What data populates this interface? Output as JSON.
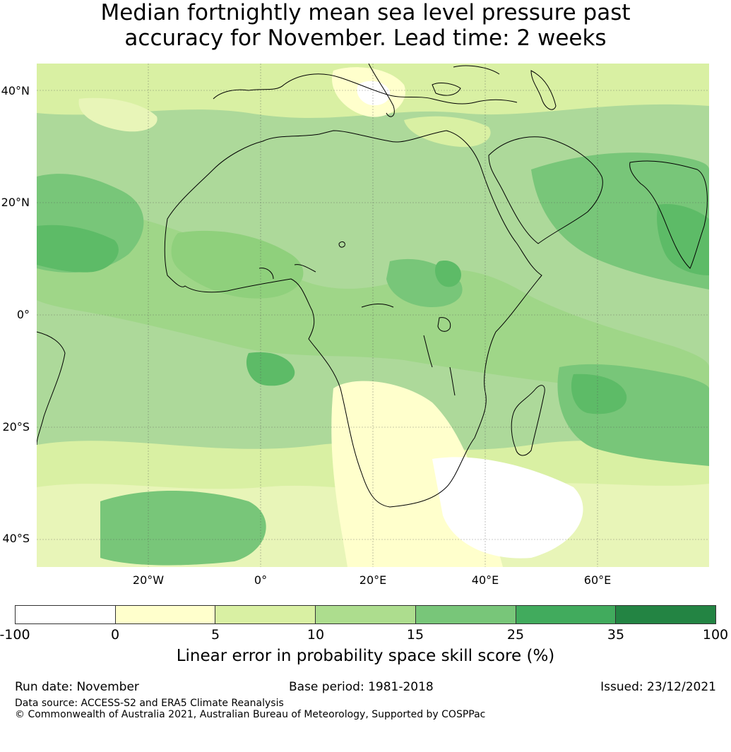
{
  "title_line1": "Median fortnightly mean sea level pressure past",
  "title_line2": "accuracy for November. Lead time: 2 weeks",
  "map": {
    "lat_labels": [
      {
        "text": "40°N",
        "lat": 40
      },
      {
        "text": "20°N",
        "lat": 20
      },
      {
        "text": "0°",
        "lat": 0
      },
      {
        "text": "20°S",
        "lat": -20
      },
      {
        "text": "40°S",
        "lat": -40
      }
    ],
    "lon_labels": [
      {
        "text": "20°W",
        "lon": -20
      },
      {
        "text": "0°",
        "lon": 0
      },
      {
        "text": "20°E",
        "lon": 20
      },
      {
        "text": "40°E",
        "lon": 40
      },
      {
        "text": "60°E",
        "lon": 60
      }
    ],
    "lat_range": [
      -45,
      45
    ],
    "lon_range": [
      -40,
      80
    ],
    "gridlines": true
  },
  "colorbar": {
    "ticks": [
      "-100",
      "0",
      "5",
      "10",
      "15",
      "25",
      "35",
      "100"
    ],
    "colors": [
      "#ffffff",
      "#ffffcc",
      "#d9f0a3",
      "#addd8e",
      "#78c679",
      "#41ab5d",
      "#238443"
    ],
    "label": "Linear error in probability space skill score (%)"
  },
  "footer": {
    "run_date": "Run date: November",
    "base_period": "Base period: 1981-2018",
    "issued": "Issued: 23/12/2021",
    "data_source": "Data source: ACCESS-S2 and ERA5 Climate Reanalysis",
    "copyright": "© Commonwealth of Australia 2021, Australian Bureau of Meteorology, Supported by COSPPac"
  }
}
